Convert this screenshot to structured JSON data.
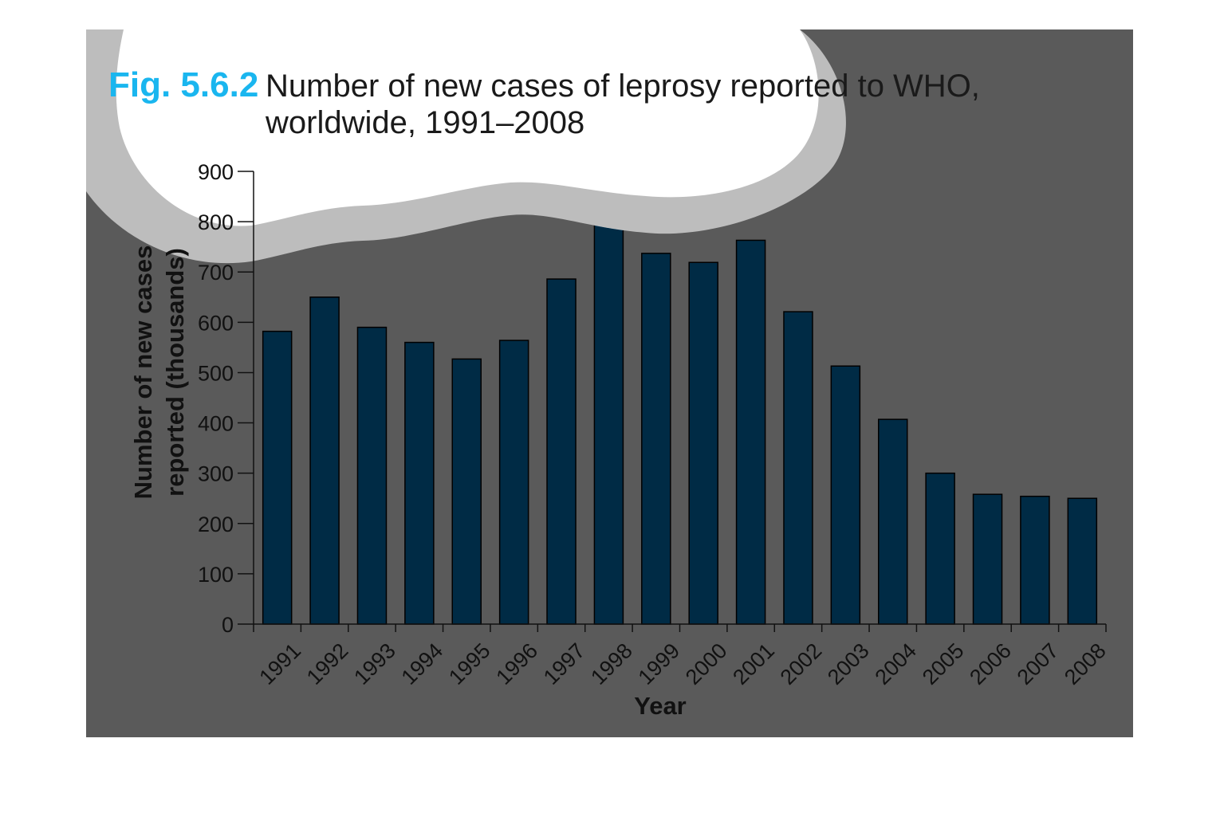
{
  "figure": {
    "number": "Fig. 5.6.2",
    "title_line1": "Number of new cases of leprosy reported to WHO,",
    "title_line2": "worldwide, 1991–2008"
  },
  "colors": {
    "panel": "#5a5a5a",
    "cloud_shadow": "#bdbdbd",
    "cloud": "#ffffff",
    "bar": "#002b45",
    "bar_highlight": "#0f5a96",
    "accent": "#1ab6ef"
  },
  "chart_data": {
    "type": "bar",
    "title": "Number of new cases of leprosy reported to WHO, worldwide, 1991–2008",
    "xlabel": "Year",
    "ylabel_line1": "Number of new cases",
    "ylabel_line2": "reported (thousands)",
    "ylim": [
      0,
      900
    ],
    "yticks": [
      0,
      100,
      200,
      300,
      400,
      500,
      600,
      700,
      800,
      900
    ],
    "grid": false,
    "categories": [
      "1991",
      "1992",
      "1993",
      "1994",
      "1995",
      "1996",
      "1997",
      "1998",
      "1999",
      "2000",
      "2001",
      "2002",
      "2003",
      "2004",
      "2005",
      "2006",
      "2007",
      "2008"
    ],
    "values": [
      582,
      650,
      590,
      560,
      527,
      564,
      686,
      800,
      737,
      719,
      763,
      621,
      513,
      407,
      300,
      258,
      254,
      250
    ]
  }
}
